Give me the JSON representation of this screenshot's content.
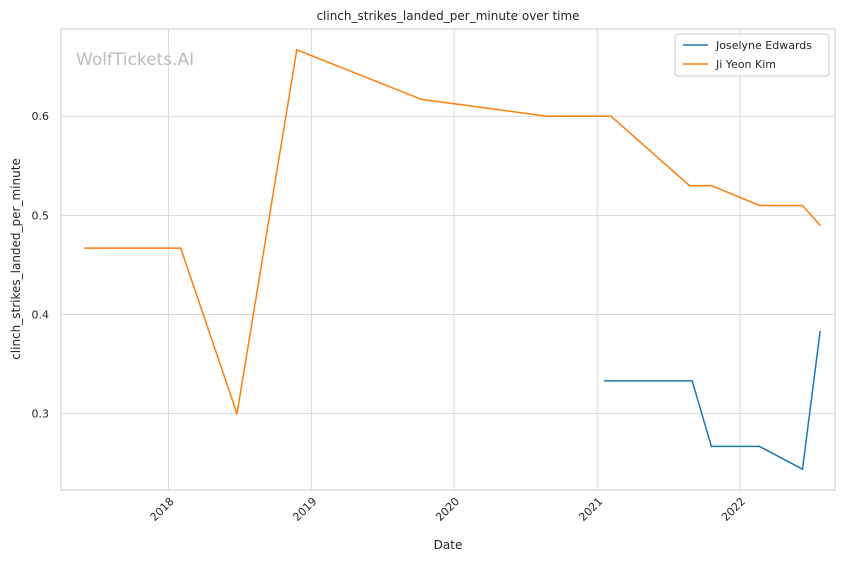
{
  "chart_data": {
    "type": "line",
    "title": "clinch_strikes_landed_per_minute over time",
    "xlabel": "Date",
    "ylabel": "clinch_strikes_landed_per_minute",
    "watermark": "WolfTickets.AI",
    "x_ticks": [
      "2018",
      "2019",
      "2020",
      "2021",
      "2022"
    ],
    "y_ticks": [
      "0.3",
      "0.4",
      "0.5",
      "0.6"
    ],
    "xlim": [
      "2017-04-01",
      "2022-09-01"
    ],
    "ylim": [
      0.223,
      0.688
    ],
    "grid": true,
    "legend_position": "top-right",
    "series": [
      {
        "name": "Joselyne Edwards",
        "color": "#1f77b4",
        "points": [
          [
            "2021-01-20",
            0.333
          ],
          [
            "2021-09-01",
            0.333
          ],
          [
            "2021-10-20",
            0.267
          ],
          [
            "2022-02-20",
            0.267
          ],
          [
            "2022-06-10",
            0.244
          ],
          [
            "2022-07-25",
            0.383
          ]
        ]
      },
      {
        "name": "Ji Yeon Kim",
        "color": "#ff7f0e",
        "points": [
          [
            "2017-06-01",
            0.467
          ],
          [
            "2018-02-01",
            0.467
          ],
          [
            "2018-06-25",
            0.3
          ],
          [
            "2018-11-25",
            0.667
          ],
          [
            "2019-10-10",
            0.617
          ],
          [
            "2020-08-25",
            0.6
          ],
          [
            "2021-02-05",
            0.6
          ],
          [
            "2021-08-25",
            0.53
          ],
          [
            "2021-10-20",
            0.53
          ],
          [
            "2022-02-20",
            0.51
          ],
          [
            "2022-06-10",
            0.51
          ],
          [
            "2022-07-25",
            0.49
          ]
        ]
      }
    ]
  }
}
